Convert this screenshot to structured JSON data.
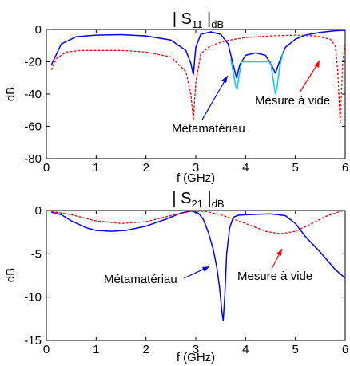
{
  "chart_data": [
    {
      "type": "line",
      "title_main": "| S",
      "title_sub": "11",
      "title_end": " |",
      "title_tail_sub": "dB",
      "xlabel": "f (GHz)",
      "ylabel": "dB",
      "xlim": [
        0,
        6
      ],
      "ylim": [
        -80,
        0
      ],
      "xticks": [
        0,
        1,
        2,
        3,
        4,
        5,
        6
      ],
      "yticks": [
        0,
        -20,
        -40,
        -60,
        -80
      ],
      "grid": false,
      "annotations": [
        {
          "text": "Métamatériau",
          "target_series": "Métamatériau"
        },
        {
          "text": "Mesure à vide",
          "target_series": "Mesure à vide"
        }
      ],
      "series": [
        {
          "name": "Métamatériau",
          "color": "#0000ff",
          "style": "solid",
          "x": [
            0.1,
            0.3,
            0.6,
            1.0,
            1.5,
            2.0,
            2.5,
            2.8,
            2.9,
            2.95,
            3.0,
            3.1,
            3.3,
            3.5,
            3.65,
            3.75,
            3.82,
            3.88,
            4.0,
            4.2,
            4.4,
            4.52,
            4.6,
            4.68,
            4.8,
            5.0,
            5.2,
            5.5,
            5.8,
            6.0
          ],
          "y": [
            -22,
            -9,
            -4.5,
            -3.5,
            -3.2,
            -4,
            -6.5,
            -13,
            -21,
            -28,
            -11,
            -3,
            -1.5,
            -3,
            -9,
            -22,
            -30,
            -22,
            -16,
            -14.5,
            -16,
            -22,
            -27,
            -20,
            -11,
            -6,
            -3.5,
            -1.8,
            -0.8,
            -0.5
          ]
        },
        {
          "name": "Métamatériau (cyan)",
          "color": "#00ccff",
          "style": "solid",
          "x": [
            3.7,
            3.76,
            3.8,
            3.83,
            3.86,
            3.92,
            4.5,
            4.55,
            4.6,
            4.63,
            4.68,
            4.75
          ],
          "y": [
            -18,
            -28,
            -35,
            -37,
            -30,
            -20,
            -20,
            -30,
            -40,
            -36,
            -24,
            -14
          ]
        },
        {
          "name": "Mesure à vide",
          "color": "#ff0000",
          "style": "dashed",
          "x": [
            0.1,
            0.2,
            0.4,
            0.7,
            1.0,
            1.5,
            2.0,
            2.5,
            2.8,
            2.9,
            2.95,
            3.0,
            3.1,
            3.3,
            3.6,
            4.0,
            4.5,
            5.0,
            5.4,
            5.7,
            5.8,
            5.85,
            5.9,
            5.95,
            6.0
          ],
          "y": [
            -25,
            -18,
            -14,
            -13,
            -13,
            -13,
            -14,
            -17,
            -26,
            -40,
            -56,
            -33,
            -15,
            -10,
            -7,
            -5,
            -4,
            -3.5,
            -4,
            -6,
            -10,
            -25,
            -58,
            -20,
            -8
          ]
        }
      ]
    },
    {
      "type": "line",
      "title_main": "| S",
      "title_sub": "21",
      "title_end": " |",
      "title_tail_sub": "dB",
      "xlabel": "f (GHz)",
      "ylabel": "dB",
      "xlim": [
        0,
        6
      ],
      "ylim": [
        -15,
        0
      ],
      "xticks": [
        0,
        1,
        2,
        3,
        4,
        5,
        6
      ],
      "yticks": [
        0,
        -5,
        -10,
        -15
      ],
      "grid": false,
      "annotations": [
        {
          "text": "Métamatériau",
          "target_series": "Métamatériau"
        },
        {
          "text": "Mesure à vide",
          "target_series": "Mesure à vide"
        }
      ],
      "series": [
        {
          "name": "Métamatériau",
          "color": "#0000ff",
          "style": "solid",
          "x": [
            0.1,
            0.3,
            0.5,
            0.8,
            1.0,
            1.3,
            1.6,
            2.0,
            2.4,
            2.7,
            2.9,
            3.05,
            3.15,
            3.25,
            3.35,
            3.42,
            3.48,
            3.52,
            3.55,
            3.58,
            3.62,
            3.68,
            3.75,
            3.85,
            4.0,
            4.2,
            4.5,
            4.8,
            5.0,
            5.2,
            5.5,
            5.8,
            6.0
          ],
          "y": [
            -0.2,
            -0.5,
            -1.2,
            -2.0,
            -2.3,
            -2.4,
            -2.3,
            -1.8,
            -1.0,
            -0.3,
            -0.05,
            -0.3,
            -1.0,
            -2.5,
            -4.5,
            -6.5,
            -9,
            -11.5,
            -12.7,
            -10,
            -5,
            -2,
            -0.8,
            -0.55,
            -0.5,
            -0.45,
            -0.4,
            -0.6,
            -1.5,
            -3,
            -4.8,
            -6.8,
            -7.8
          ]
        },
        {
          "name": "Mesure à vide",
          "color": "#ff0000",
          "style": "dashed",
          "x": [
            0.1,
            0.5,
            1.0,
            1.5,
            2.0,
            2.5,
            2.9,
            3.2,
            3.5,
            4.0,
            4.4,
            4.7,
            5.0,
            5.3,
            5.6,
            5.9,
            6.0
          ],
          "y": [
            -0.1,
            -0.5,
            -1.2,
            -1.5,
            -1.3,
            -0.6,
            -0.1,
            -0.1,
            -0.5,
            -1.5,
            -2.4,
            -2.7,
            -2.4,
            -1.6,
            -0.7,
            -0.1,
            0
          ]
        }
      ]
    }
  ]
}
